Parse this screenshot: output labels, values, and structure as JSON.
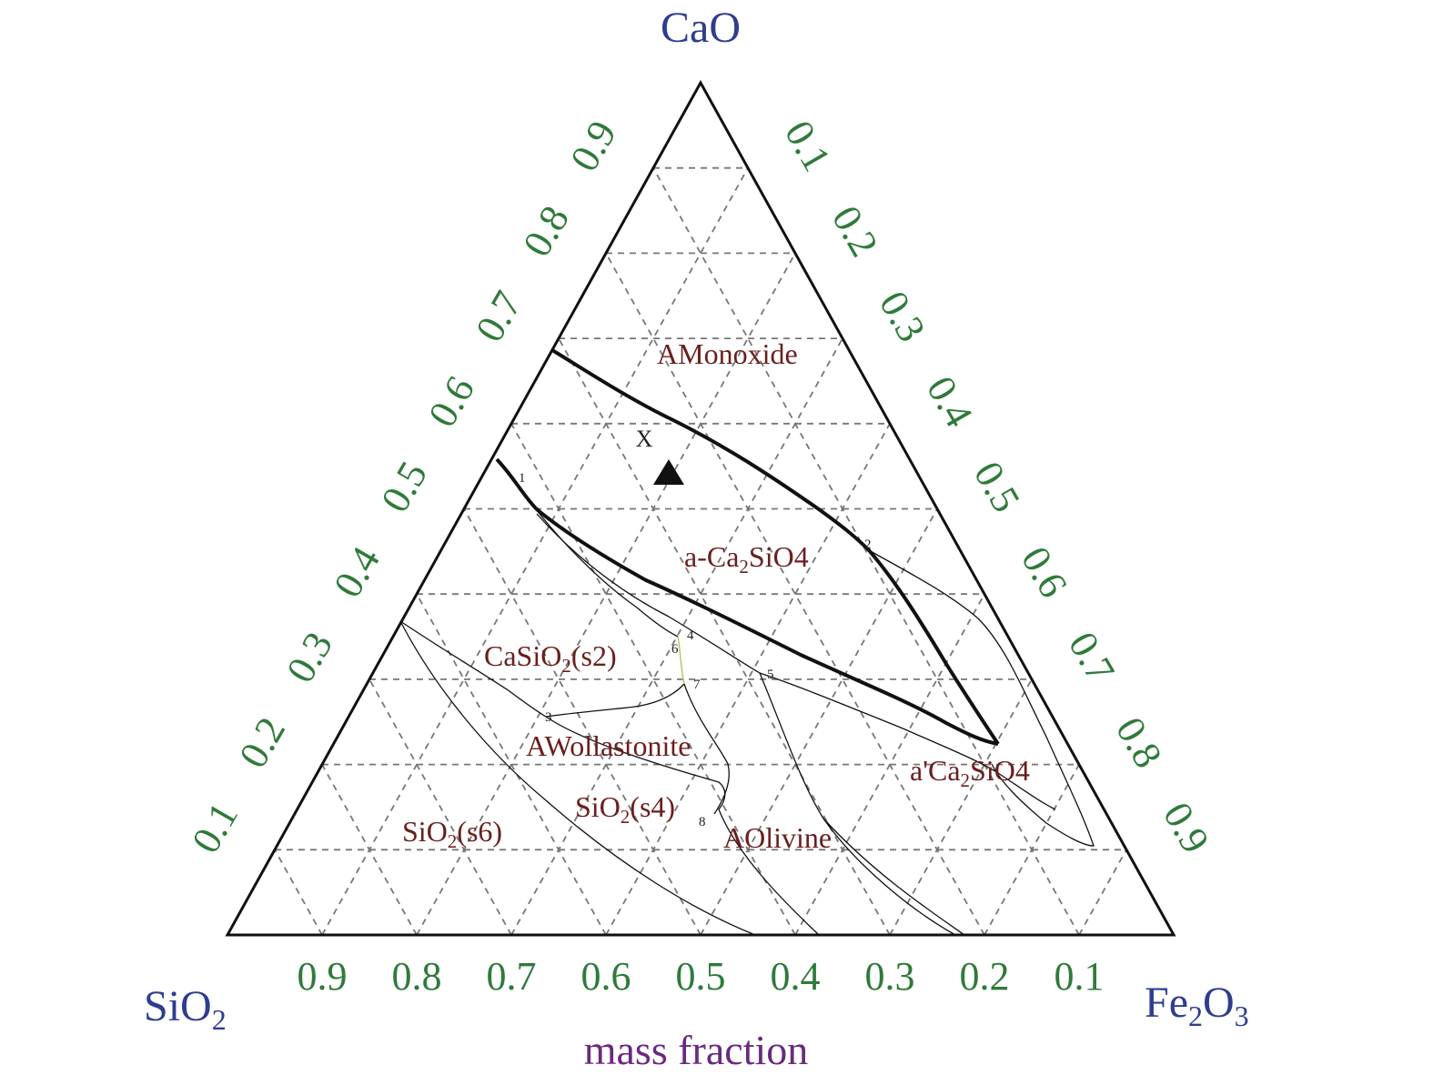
{
  "vertices": {
    "top": "CaO",
    "left": {
      "base": "SiO",
      "sub": "2"
    },
    "right": {
      "base": "Fe",
      "sub1": "2",
      "mid": "O",
      "sub2": "3"
    }
  },
  "axis_title": "mass fraction",
  "bottom_ticks": [
    "0.9",
    "0.8",
    "0.7",
    "0.6",
    "0.5",
    "0.4",
    "0.3",
    "0.2",
    "0.1"
  ],
  "left_ticks": [
    "0.1",
    "0.2",
    "0.3",
    "0.4",
    "0.5",
    "0.6",
    "0.7",
    "0.8",
    "0.9"
  ],
  "right_ticks": [
    "0.1",
    "0.2",
    "0.3",
    "0.4",
    "0.5",
    "0.6",
    "0.7",
    "0.8",
    "0.9"
  ],
  "phases": {
    "monoxide": "AMonoxide",
    "a_ca2sio4": {
      "pre": "a-Ca",
      "sub": "2",
      "post": "SiO4"
    },
    "casio2": {
      "pre": "CaSiO",
      "sub": "2",
      "post": "(s2)"
    },
    "wollastonite": "AWollastonite",
    "a2_ca2sio4": {
      "pre": "a'Ca",
      "sub": "2",
      "post": "SiO4"
    },
    "sio2_s6": {
      "pre": "SiO",
      "sub": "2",
      "post": "(s6)"
    },
    "sio2_s4": {
      "pre": "SiO",
      "sub": "2",
      "post": "(s4)"
    },
    "olivine": "AOlivine"
  },
  "points": [
    "1",
    "2",
    "3",
    "4",
    "5",
    "6",
    "7",
    "8"
  ],
  "marker": {
    "label": "X",
    "shape": "filled-triangle"
  },
  "colors": {
    "vertex_labels": "#2e3d91",
    "tick_labels": "#2f7a3a",
    "phase_labels": "#6b1e1e",
    "axis_title": "#6a2a7e"
  }
}
